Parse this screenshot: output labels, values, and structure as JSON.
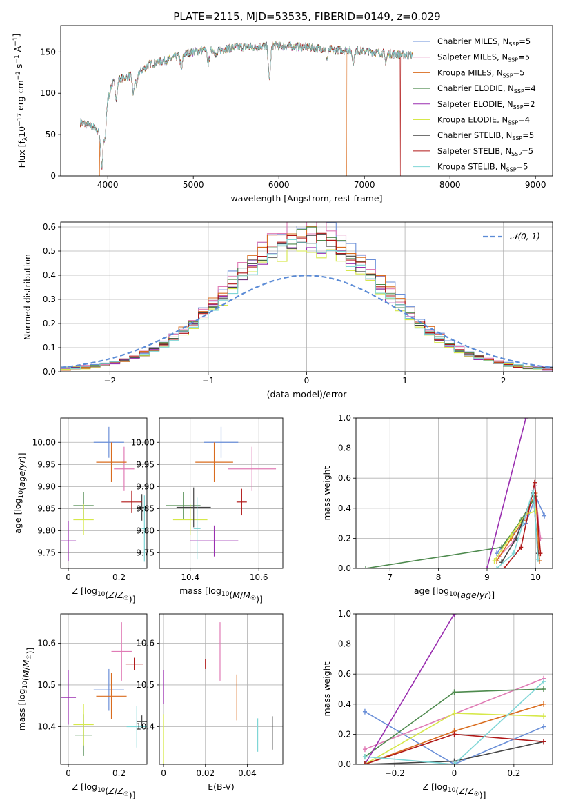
{
  "figure": {
    "title": "PLATE=2115, MJD=53535, FIBERID=0149, z=0.029"
  },
  "colors": {
    "Chabrier MILES": "#6a8fd8",
    "Salpeter MILES": "#e07bb5",
    "Kroupa MILES": "#d96c1e",
    "Chabrier ELODIE": "#4e8a4e",
    "Salpeter ELODIE": "#9a2fb0",
    "Kroupa ELODIE": "#d6e84a",
    "Chabrier STELIB": "#444444",
    "Salpeter STELIB": "#b01818",
    "Kroupa STELIB": "#7fd6d6"
  },
  "chart_data": [
    {
      "id": "spectrum",
      "type": "line",
      "title": "PLATE=2115, MJD=53535, FIBERID=0149, z=0.029",
      "xlabel": "wavelength [Angstrom, rest frame]",
      "ylabel": "Flux [fλ10⁻¹⁷ erg cm⁻² s⁻¹ A⁻¹]",
      "xlim": [
        3450,
        9200
      ],
      "ylim": [
        0,
        182
      ],
      "xticks": [
        4000,
        5000,
        6000,
        7000,
        8000,
        9000
      ],
      "yticks": [
        0,
        50,
        100,
        150
      ],
      "legend_position": "top-right",
      "legend": [
        {
          "model": "Chabrier MILES",
          "n": "5"
        },
        {
          "model": "Salpeter MILES",
          "n": "5"
        },
        {
          "model": "Kroupa MILES",
          "n": "5"
        },
        {
          "model": "Chabrier ELODIE",
          "n": "4"
        },
        {
          "model": "Salpeter ELODIE",
          "n": "2"
        },
        {
          "model": "Kroupa ELODIE",
          "n": "4"
        },
        {
          "model": "Chabrier STELIB",
          "n": "5"
        },
        {
          "model": "Salpeter STELIB",
          "n": "5"
        },
        {
          "model": "Kroupa STELIB",
          "n": "5"
        }
      ],
      "legend_subscript": "SSP",
      "continuum_points": [
        [
          3680,
          65
        ],
        [
          3750,
          62
        ],
        [
          3850,
          58
        ],
        [
          3920,
          50
        ],
        [
          3970,
          80
        ],
        [
          4050,
          112
        ],
        [
          4150,
          118
        ],
        [
          4300,
          122
        ],
        [
          4400,
          128
        ],
        [
          4500,
          136
        ],
        [
          4700,
          140
        ],
        [
          4900,
          148
        ],
        [
          5100,
          152
        ],
        [
          5300,
          152
        ],
        [
          5500,
          156
        ],
        [
          5700,
          156
        ],
        [
          5900,
          158
        ],
        [
          6100,
          157
        ],
        [
          6300,
          156
        ],
        [
          6500,
          154
        ],
        [
          6700,
          152
        ],
        [
          6900,
          152
        ],
        [
          7100,
          150
        ],
        [
          7300,
          148
        ],
        [
          7500,
          146
        ]
      ],
      "dips": [
        [
          3933,
          46
        ],
        [
          3968,
          36
        ],
        [
          4101,
          20
        ],
        [
          4300,
          22
        ],
        [
          4340,
          15
        ],
        [
          4861,
          18
        ],
        [
          5175,
          16
        ],
        [
          5270,
          8
        ],
        [
          5890,
          42
        ],
        [
          6563,
          12
        ],
        [
          6870,
          14
        ],
        [
          7250,
          10
        ]
      ],
      "deep_drops": [
        {
          "series": "Kroupa MILES",
          "x": 6790
        },
        {
          "series": "Salpeter STELIB",
          "x": 7420
        },
        {
          "series": "Kroupa MILES",
          "x": 3905
        }
      ]
    },
    {
      "id": "residual-histogram",
      "type": "bar",
      "xlabel": "(data-model)/error",
      "ylabel": "Normed distribution",
      "xlim": [
        -2.5,
        2.5
      ],
      "ylim": [
        0,
        0.62
      ],
      "xticks": [
        -2,
        -1,
        0,
        1,
        2
      ],
      "yticks": [
        0.0,
        0.1,
        0.2,
        0.3,
        0.4,
        0.5,
        0.6
      ],
      "grid": true,
      "legend_position": "top-right",
      "reference_curve": {
        "name": "𝒩(0, 1)",
        "mean": 0,
        "sigma": 1
      },
      "bin_width": 0.1,
      "peak_heights": [
        0.59,
        0.57,
        0.56,
        0.54,
        0.5,
        0.48,
        0.52,
        0.53,
        0.5
      ]
    },
    {
      "id": "age-vs-Z",
      "type": "scatter",
      "xlabel": "Z [log10(Z/Z☉)]",
      "ylabel": "age [log10(age/yr)]",
      "xlim": [
        -0.03,
        0.31
      ],
      "ylim": [
        9.715,
        10.055
      ],
      "xticks": [
        0.0,
        0.2
      ],
      "yticks": [
        9.75,
        9.8,
        9.85,
        9.9,
        9.95,
        10.0
      ],
      "grid": true,
      "points": [
        {
          "series": "Chabrier MILES",
          "x": 0.16,
          "y": 10.0,
          "xerr": 0.06,
          "yerr": 0.035
        },
        {
          "series": "Salpeter MILES",
          "x": 0.22,
          "y": 9.94,
          "xerr": 0.04,
          "yerr": 0.05
        },
        {
          "series": "Kroupa MILES",
          "x": 0.17,
          "y": 9.955,
          "xerr": 0.06,
          "yerr": 0.045
        },
        {
          "series": "Chabrier ELODIE",
          "x": 0.06,
          "y": 9.857,
          "xerr": 0.04,
          "yerr": 0.03
        },
        {
          "series": "Salpeter ELODIE",
          "x": 0.0,
          "y": 9.777,
          "xerr": 0.03,
          "yerr": 0.045
        },
        {
          "series": "Kroupa ELODIE",
          "x": 0.06,
          "y": 9.825,
          "xerr": 0.04,
          "yerr": 0.035
        },
        {
          "series": "Chabrier STELIB",
          "x": 0.29,
          "y": 9.853,
          "xerr": 0.02,
          "yerr": 0.03
        },
        {
          "series": "Salpeter STELIB",
          "x": 0.25,
          "y": 9.865,
          "xerr": 0.04,
          "yerr": 0.025
        },
        {
          "series": "Kroupa STELIB",
          "x": 0.3,
          "y": 9.805,
          "xerr": 0.01,
          "yerr": 0.075
        }
      ]
    },
    {
      "id": "age-vs-mass",
      "type": "scatter",
      "xlabel": "mass [log10(M/M☉)]",
      "ylabel": "",
      "xlim": [
        10.31,
        10.67
      ],
      "ylim": [
        9.715,
        10.055
      ],
      "xticks": [
        10.4,
        10.6
      ],
      "yticks": [
        9.75,
        9.8,
        9.85,
        9.9,
        9.95,
        10.0
      ],
      "grid": true,
      "points": [
        {
          "series": "Chabrier MILES",
          "x": 10.49,
          "y": 10.0,
          "xerr": 0.05,
          "yerr": 0.035
        },
        {
          "series": "Salpeter MILES",
          "x": 10.58,
          "y": 9.94,
          "xerr": 0.07,
          "yerr": 0.05
        },
        {
          "series": "Kroupa MILES",
          "x": 10.47,
          "y": 9.955,
          "xerr": 0.055,
          "yerr": 0.045
        },
        {
          "series": "Chabrier ELODIE",
          "x": 10.38,
          "y": 9.857,
          "xerr": 0.05,
          "yerr": 0.03
        },
        {
          "series": "Salpeter ELODIE",
          "x": 10.47,
          "y": 9.777,
          "xerr": 0.07,
          "yerr": 0.035
        },
        {
          "series": "Kroupa ELODIE",
          "x": 10.4,
          "y": 9.825,
          "xerr": 0.05,
          "yerr": 0.035
        },
        {
          "series": "Chabrier STELIB",
          "x": 10.41,
          "y": 9.853,
          "xerr": 0.05,
          "yerr": 0.045
        },
        {
          "series": "Salpeter STELIB",
          "x": 10.55,
          "y": 9.865,
          "xerr": 0.015,
          "yerr": 0.03
        },
        {
          "series": "Kroupa STELIB",
          "x": 10.42,
          "y": 9.805,
          "xerr": 0.01,
          "yerr": 0.07
        }
      ]
    },
    {
      "id": "mass-weight-vs-age",
      "type": "line",
      "xlabel": "age [log10(age/yr)]",
      "ylabel": "mass weight",
      "xlim": [
        6.3,
        10.35
      ],
      "ylim": [
        0,
        1.0
      ],
      "xticks": [
        7,
        8,
        9,
        10
      ],
      "yticks": [
        0.0,
        0.2,
        0.4,
        0.6,
        0.8,
        1.0
      ],
      "grid": true,
      "series": [
        {
          "name": "Chabrier MILES",
          "x": [
            9.2,
            9.5,
            9.8,
            10.0,
            10.18
          ],
          "y": [
            0.1,
            0.22,
            0.3,
            0.48,
            0.35
          ]
        },
        {
          "name": "Salpeter MILES",
          "x": [
            9.25,
            9.55,
            9.8,
            9.98,
            10.1
          ],
          "y": [
            0.08,
            0.18,
            0.35,
            0.55,
            0.2
          ]
        },
        {
          "name": "Kroupa MILES",
          "x": [
            9.2,
            9.5,
            9.75,
            10.0,
            10.08
          ],
          "y": [
            0.05,
            0.2,
            0.32,
            0.5,
            0.05
          ]
        },
        {
          "name": "Chabrier ELODIE",
          "x": [
            6.5,
            9.3,
            9.7,
            10.0
          ],
          "y": [
            0.0,
            0.14,
            0.32,
            0.48
          ]
        },
        {
          "name": "Salpeter ELODIE",
          "x": [
            9.0,
            9.8
          ],
          "y": [
            0.0,
            1.0
          ]
        },
        {
          "name": "Kroupa ELODIE",
          "x": [
            9.15,
            9.5,
            9.8,
            10.0
          ],
          "y": [
            0.05,
            0.22,
            0.36,
            0.38
          ]
        },
        {
          "name": "Chabrier STELIB",
          "x": [
            9.3,
            9.6,
            9.95,
            10.05
          ],
          "y": [
            0.04,
            0.2,
            0.5,
            0.1
          ]
        },
        {
          "name": "Salpeter STELIB",
          "x": [
            9.35,
            9.7,
            9.98,
            10.1
          ],
          "y": [
            0.0,
            0.14,
            0.57,
            0.1
          ]
        },
        {
          "name": "Kroupa STELIB",
          "x": [
            9.2,
            9.55,
            9.95,
            10.05
          ],
          "y": [
            0.0,
            0.1,
            0.52,
            0.06
          ]
        }
      ]
    },
    {
      "id": "mass-vs-Z",
      "type": "scatter",
      "xlabel": "Z [log10(Z/Z☉)]",
      "ylabel": "mass [log10(M/M☉)]",
      "xlim": [
        -0.03,
        0.31
      ],
      "ylim": [
        10.31,
        10.67
      ],
      "xticks": [
        0.0,
        0.2
      ],
      "yticks": [
        10.4,
        10.5,
        10.6
      ],
      "grid": true,
      "points": [
        {
          "series": "Chabrier MILES",
          "x": 0.16,
          "y": 10.488,
          "xerr": 0.06,
          "yerr": 0.05
        },
        {
          "series": "Salpeter MILES",
          "x": 0.21,
          "y": 10.58,
          "xerr": 0.04,
          "yerr": 0.07
        },
        {
          "series": "Kroupa MILES",
          "x": 0.17,
          "y": 10.473,
          "xerr": 0.06,
          "yerr": 0.055
        },
        {
          "series": "Chabrier ELODIE",
          "x": 0.06,
          "y": 10.38,
          "xerr": 0.035,
          "yerr": 0.05
        },
        {
          "series": "Salpeter ELODIE",
          "x": 0.0,
          "y": 10.47,
          "xerr": 0.03,
          "yerr": 0.065
        },
        {
          "series": "Kroupa ELODIE",
          "x": 0.06,
          "y": 10.405,
          "xerr": 0.04,
          "yerr": 0.05
        },
        {
          "series": "Chabrier STELIB",
          "x": 0.29,
          "y": 10.412,
          "xerr": 0.02,
          "yerr": 0.015
        },
        {
          "series": "Salpeter STELIB",
          "x": 0.26,
          "y": 10.55,
          "xerr": 0.035,
          "yerr": 0.015
        },
        {
          "series": "Kroupa STELIB",
          "x": 0.27,
          "y": 10.4,
          "xerr": 0.04,
          "yerr": 0.05
        }
      ]
    },
    {
      "id": "mass-vs-ebv",
      "type": "scatter",
      "xlabel": "E(B-V)",
      "ylabel": "",
      "xlim": [
        -0.002,
        0.057
      ],
      "ylim": [
        10.31,
        10.67
      ],
      "xticks": [
        0.0,
        0.02,
        0.04
      ],
      "yticks": [
        10.4,
        10.5,
        10.6
      ],
      "grid": true,
      "points": [
        {
          "series": "Salpeter MILES",
          "x": 0.027,
          "y": 10.58,
          "xerr": 0,
          "yerr": 0.07
        },
        {
          "series": "Kroupa MILES",
          "x": 0.035,
          "y": 10.47,
          "xerr": 0,
          "yerr": 0.055
        },
        {
          "series": "Salpeter ELODIE",
          "x": 0.0,
          "y": 10.495,
          "xerr": 0,
          "yerr": 0.04
        },
        {
          "series": "Kroupa ELODIE",
          "x": 0.0,
          "y": 10.37,
          "xerr": 0,
          "yerr": 0.06
        },
        {
          "series": "Chabrier STELIB",
          "x": 0.052,
          "y": 10.385,
          "xerr": 0,
          "yerr": 0.04
        },
        {
          "series": "Salpeter STELIB",
          "x": 0.02,
          "y": 10.55,
          "xerr": 0,
          "yerr": 0.012
        },
        {
          "series": "Kroupa STELIB",
          "x": 0.045,
          "y": 10.38,
          "xerr": 0,
          "yerr": 0.04
        }
      ]
    },
    {
      "id": "mass-weight-vs-Z",
      "type": "line",
      "xlabel": "Z [log10(Z/Z☉)]",
      "ylabel": "mass weight",
      "xlim": [
        -0.33,
        0.33
      ],
      "ylim": [
        0,
        1.0
      ],
      "xticks": [
        -0.2,
        0.0,
        0.2
      ],
      "yticks": [
        0.0,
        0.2,
        0.4,
        0.6,
        0.8,
        1.0
      ],
      "grid": true,
      "series": [
        {
          "name": "Chabrier MILES",
          "x": [
            -0.3,
            0.0,
            0.3
          ],
          "y": [
            0.35,
            0.0,
            0.25
          ]
        },
        {
          "name": "Salpeter MILES",
          "x": [
            -0.3,
            0.3
          ],
          "y": [
            0.1,
            0.57
          ]
        },
        {
          "name": "Kroupa MILES",
          "x": [
            -0.3,
            0.0,
            0.3
          ],
          "y": [
            0.0,
            0.22,
            0.4
          ]
        },
        {
          "name": "Chabrier ELODIE",
          "x": [
            -0.3,
            0.0,
            0.3
          ],
          "y": [
            0.05,
            0.48,
            0.5
          ]
        },
        {
          "name": "Salpeter ELODIE",
          "x": [
            -0.3,
            0.0
          ],
          "y": [
            0.0,
            1.0
          ]
        },
        {
          "name": "Kroupa ELODIE",
          "x": [
            -0.3,
            0.0,
            0.3
          ],
          "y": [
            0.0,
            0.34,
            0.32
          ]
        },
        {
          "name": "Chabrier STELIB",
          "x": [
            -0.3,
            0.0,
            0.3
          ],
          "y": [
            0.0,
            0.02,
            0.15
          ]
        },
        {
          "name": "Salpeter STELIB",
          "x": [
            -0.3,
            0.0,
            0.3
          ],
          "y": [
            0.0,
            0.2,
            0.15
          ]
        },
        {
          "name": "Kroupa STELIB",
          "x": [
            -0.3,
            0.0,
            0.3
          ],
          "y": [
            0.05,
            0.0,
            0.55
          ]
        }
      ]
    }
  ]
}
